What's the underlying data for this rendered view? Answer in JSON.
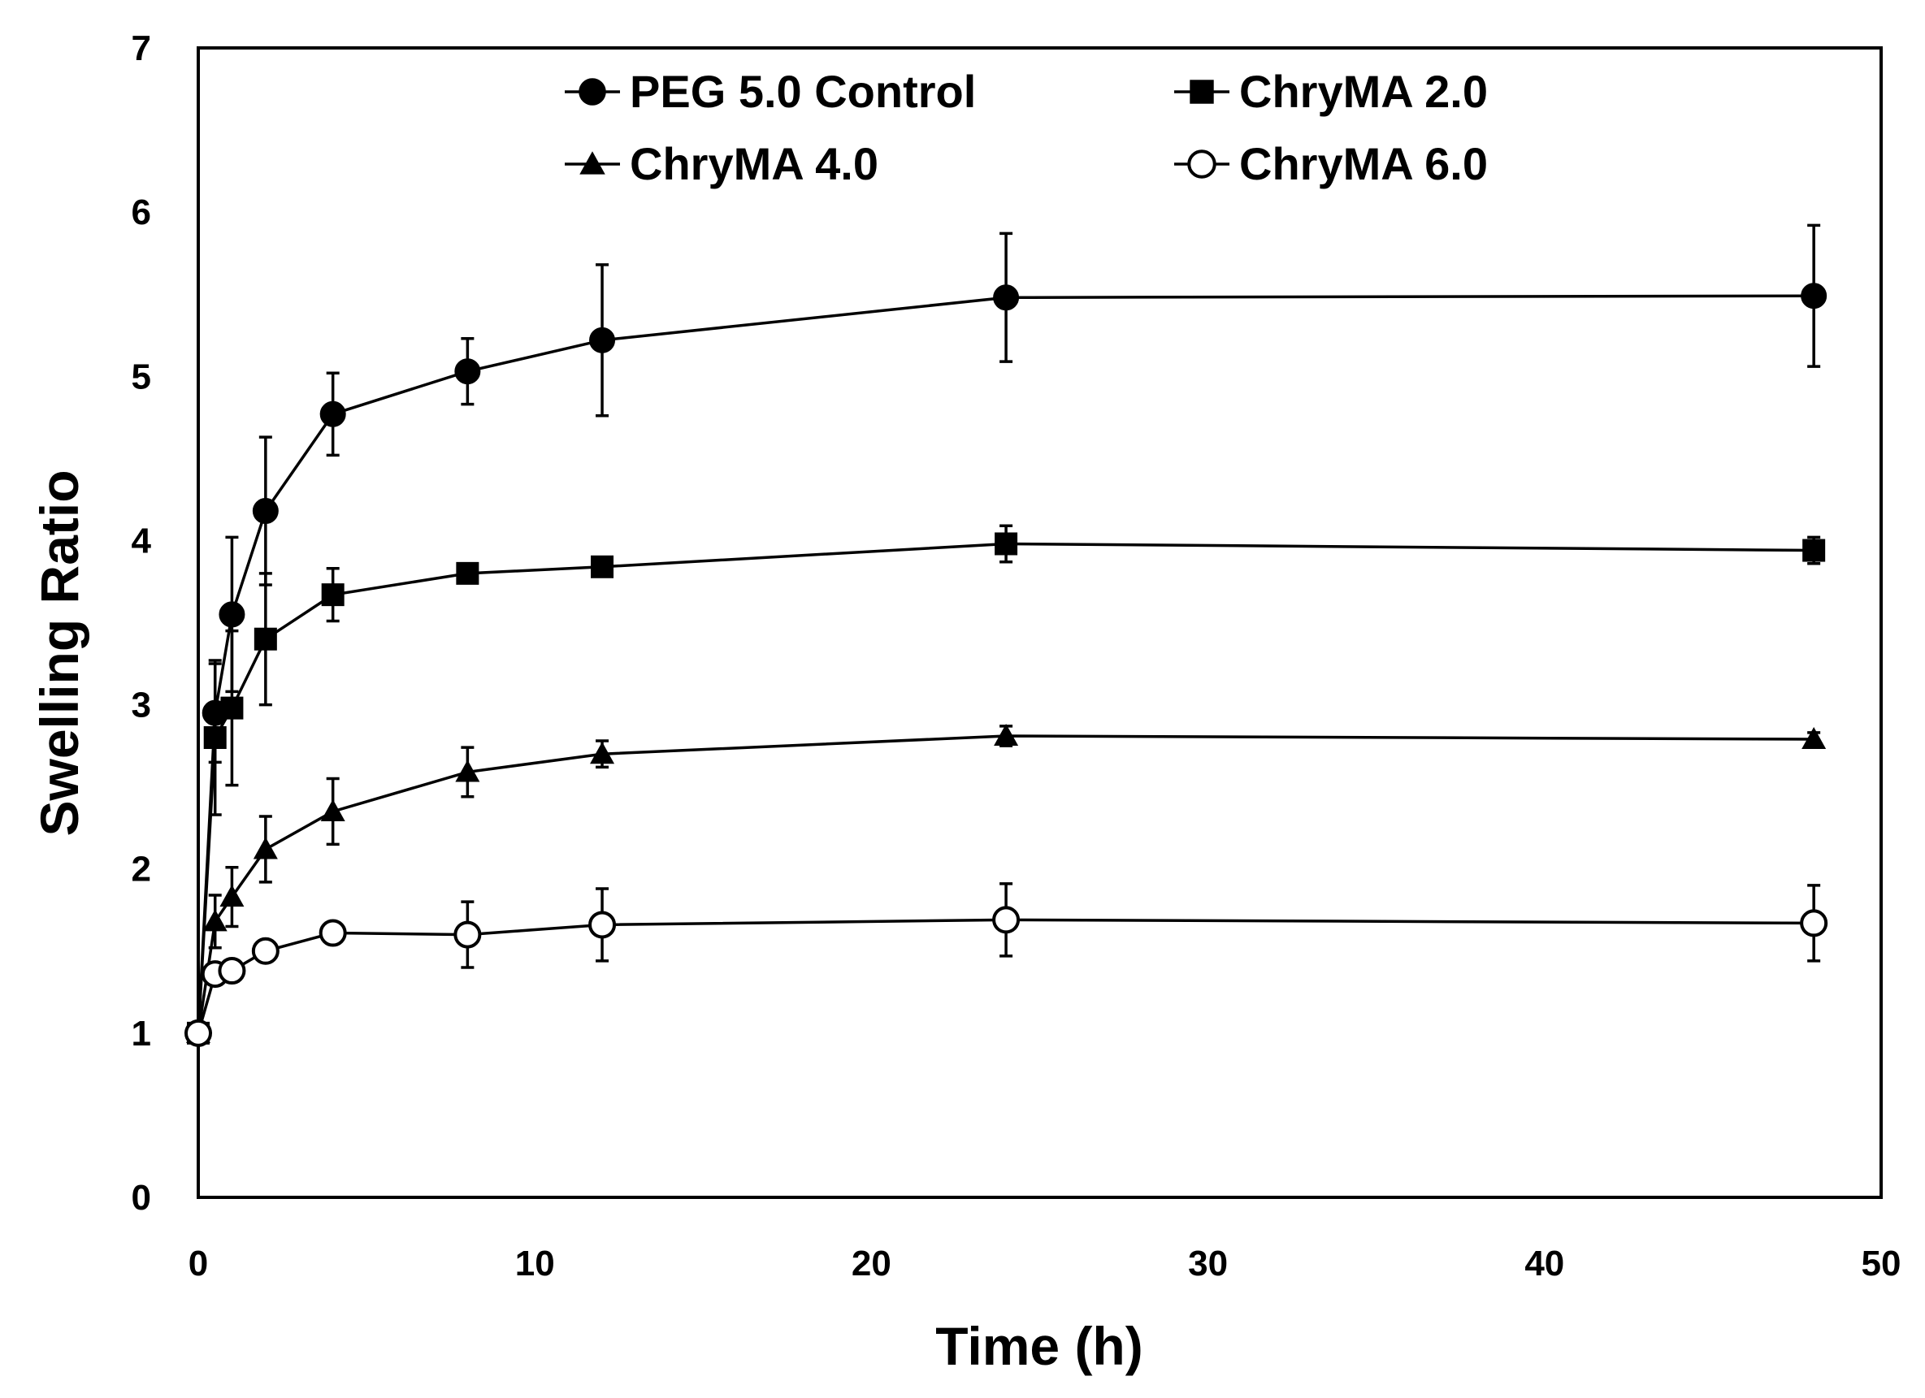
{
  "chart_data": {
    "type": "line",
    "title": "",
    "xlabel": "Time (h)",
    "ylabel": "Swelling Ratio",
    "xlim": [
      0,
      50
    ],
    "ylim": [
      0,
      7
    ],
    "x_ticks": [
      0,
      10,
      20,
      30,
      40,
      50
    ],
    "y_ticks": [
      0,
      1,
      2,
      3,
      4,
      5,
      6,
      7
    ],
    "grid": false,
    "legend_position": "top",
    "x": [
      0,
      0.5,
      1,
      2,
      4,
      8,
      12,
      24,
      48
    ],
    "series": [
      {
        "name": "PEG 5.0 Control",
        "marker": "filled-circle",
        "values": [
          1.0,
          2.95,
          3.55,
          4.18,
          4.77,
          5.03,
          5.22,
          5.48,
          5.49
        ],
        "errors": [
          0.0,
          0.3,
          0.47,
          0.45,
          0.25,
          0.2,
          0.46,
          0.39,
          0.43
        ]
      },
      {
        "name": "ChryMA 2.0",
        "marker": "filled-square",
        "values": [
          1.0,
          2.8,
          2.98,
          3.4,
          3.67,
          3.8,
          3.84,
          3.98,
          3.94
        ],
        "errors": [
          0.0,
          0.47,
          0.47,
          0.4,
          0.16,
          0.0,
          0.0,
          0.11,
          0.08
        ]
      },
      {
        "name": "ChryMA 4.0",
        "marker": "filled-triangle",
        "values": [
          1.0,
          1.68,
          1.83,
          2.12,
          2.35,
          2.59,
          2.7,
          2.81,
          2.79
        ],
        "errors": [
          0.0,
          0.16,
          0.18,
          0.2,
          0.2,
          0.15,
          0.08,
          0.06,
          0.04
        ]
      },
      {
        "name": "ChryMA 6.0",
        "marker": "open-circle",
        "values": [
          1.0,
          1.36,
          1.38,
          1.5,
          1.61,
          1.6,
          1.66,
          1.69,
          1.67
        ],
        "errors": [
          0.0,
          0.0,
          0.0,
          0.0,
          0.0,
          0.2,
          0.22,
          0.22,
          0.23
        ]
      }
    ]
  }
}
